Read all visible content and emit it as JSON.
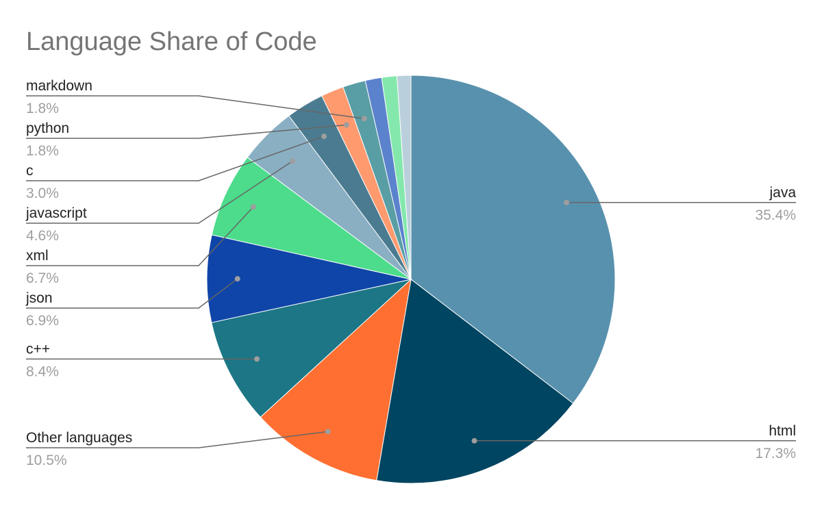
{
  "chart_data": {
    "type": "pie",
    "title": "Language Share of Code",
    "slices": [
      {
        "name": "java",
        "value": 35.4,
        "label": "35.4%",
        "color": "#5891ad"
      },
      {
        "name": "html",
        "value": 17.3,
        "label": "17.3%",
        "color": "#004561"
      },
      {
        "name": "Other languages",
        "value": 10.5,
        "label": "10.5%",
        "color": "#ff6f31"
      },
      {
        "name": "c++",
        "value": 8.4,
        "label": "8.4%",
        "color": "#1c7685"
      },
      {
        "name": "json",
        "value": 6.9,
        "label": "6.9%",
        "color": "#0f45a8"
      },
      {
        "name": "xml",
        "value": 6.7,
        "label": "6.7%",
        "color": "#4cdc8b"
      },
      {
        "name": "javascript",
        "value": 4.6,
        "label": "4.6%",
        "color": "#8aafc3"
      },
      {
        "name": "c",
        "value": 3.0,
        "label": "3.0%",
        "color": "#4b7b91"
      },
      {
        "name": "python",
        "value": 1.8,
        "label": "1.8%",
        "color": "#ff9a6f"
      },
      {
        "name": "markdown",
        "value": 1.8,
        "label": "1.8%",
        "color": "#5a9ea5"
      },
      {
        "name": "",
        "value": 1.3,
        "label": "",
        "color": "#5b82cc"
      },
      {
        "name": "",
        "value": 1.2,
        "label": "",
        "color": "#84e8ac"
      },
      {
        "name": "",
        "value": 1.1,
        "label": "",
        "color": "#b9d0dc"
      }
    ]
  }
}
